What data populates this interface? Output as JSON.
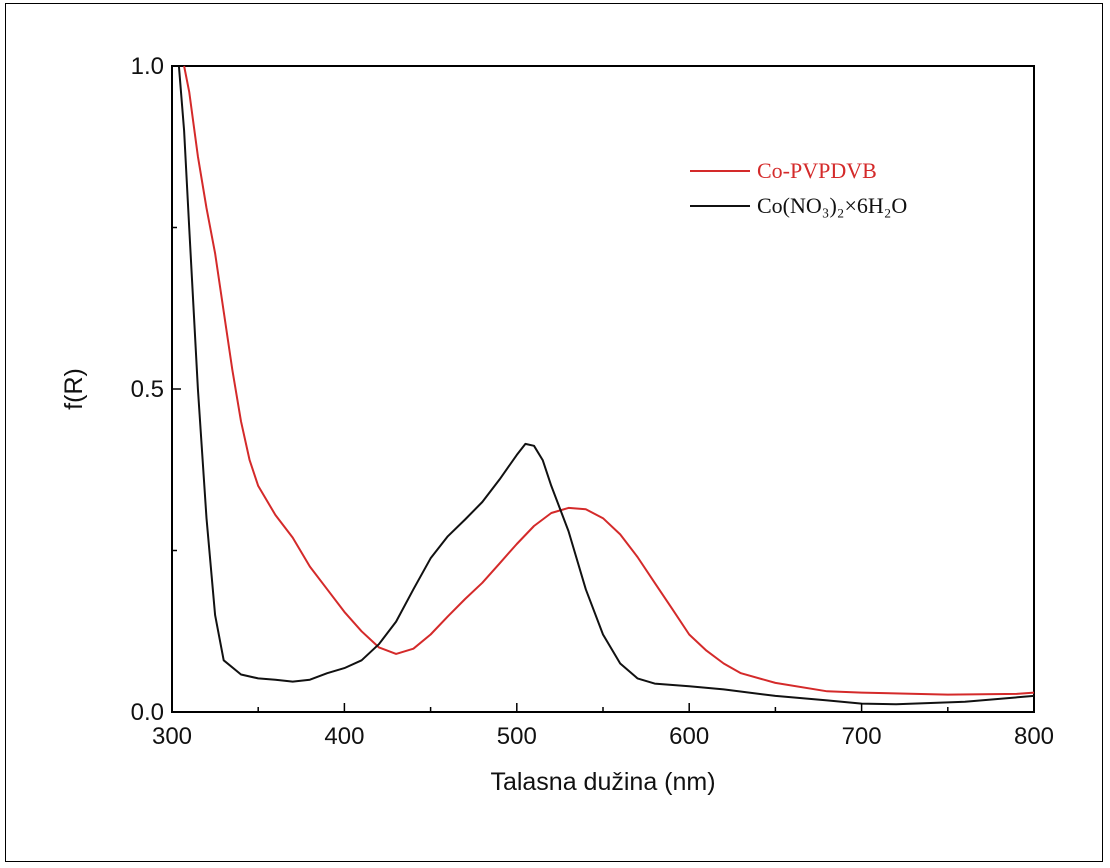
{
  "chart_data": {
    "type": "line",
    "title": "",
    "xlabel": "Talasna dužina (nm)",
    "ylabel": "f(R)",
    "xlim": [
      300,
      800
    ],
    "ylim": [
      0,
      1.0
    ],
    "x_ticks": [
      "300",
      "400",
      "500",
      "600",
      "700",
      "800"
    ],
    "y_ticks": [
      "0.0",
      "0.5",
      "1.0"
    ],
    "grid": false,
    "legend_position": "top-right",
    "series": [
      {
        "name": "Co-PVPDVB",
        "color": "#d42a2a",
        "points": [
          [
            307,
            1.0
          ],
          [
            310,
            0.96
          ],
          [
            315,
            0.86
          ],
          [
            320,
            0.78
          ],
          [
            325,
            0.71
          ],
          [
            330,
            0.62
          ],
          [
            335,
            0.53
          ],
          [
            340,
            0.45
          ],
          [
            345,
            0.39
          ],
          [
            350,
            0.35
          ],
          [
            360,
            0.305
          ],
          [
            370,
            0.27
          ],
          [
            380,
            0.225
          ],
          [
            390,
            0.19
          ],
          [
            400,
            0.155
          ],
          [
            410,
            0.125
          ],
          [
            420,
            0.1
          ],
          [
            430,
            0.09
          ],
          [
            440,
            0.098
          ],
          [
            450,
            0.12
          ],
          [
            460,
            0.148
          ],
          [
            470,
            0.175
          ],
          [
            480,
            0.2
          ],
          [
            490,
            0.23
          ],
          [
            500,
            0.26
          ],
          [
            510,
            0.288
          ],
          [
            520,
            0.308
          ],
          [
            530,
            0.316
          ],
          [
            540,
            0.314
          ],
          [
            550,
            0.3
          ],
          [
            560,
            0.275
          ],
          [
            570,
            0.24
          ],
          [
            580,
            0.2
          ],
          [
            590,
            0.16
          ],
          [
            600,
            0.12
          ],
          [
            610,
            0.095
          ],
          [
            620,
            0.075
          ],
          [
            630,
            0.06
          ],
          [
            650,
            0.045
          ],
          [
            680,
            0.032
          ],
          [
            700,
            0.03
          ],
          [
            750,
            0.027
          ],
          [
            790,
            0.028
          ],
          [
            800,
            0.03
          ]
        ]
      },
      {
        "name": "Co(NO₃)₂×6H₂O",
        "color": "#111111",
        "points": [
          [
            304,
            1.0
          ],
          [
            307,
            0.9
          ],
          [
            310,
            0.75
          ],
          [
            315,
            0.5
          ],
          [
            320,
            0.3
          ],
          [
            325,
            0.15
          ],
          [
            330,
            0.08
          ],
          [
            340,
            0.058
          ],
          [
            350,
            0.052
          ],
          [
            360,
            0.05
          ],
          [
            370,
            0.047
          ],
          [
            380,
            0.05
          ],
          [
            390,
            0.06
          ],
          [
            400,
            0.068
          ],
          [
            410,
            0.08
          ],
          [
            420,
            0.105
          ],
          [
            430,
            0.14
          ],
          [
            440,
            0.19
          ],
          [
            450,
            0.238
          ],
          [
            460,
            0.272
          ],
          [
            470,
            0.298
          ],
          [
            480,
            0.325
          ],
          [
            490,
            0.36
          ],
          [
            500,
            0.398
          ],
          [
            505,
            0.415
          ],
          [
            510,
            0.412
          ],
          [
            515,
            0.39
          ],
          [
            520,
            0.35
          ],
          [
            530,
            0.28
          ],
          [
            540,
            0.19
          ],
          [
            550,
            0.12
          ],
          [
            560,
            0.075
          ],
          [
            570,
            0.052
          ],
          [
            580,
            0.044
          ],
          [
            600,
            0.04
          ],
          [
            620,
            0.035
          ],
          [
            650,
            0.025
          ],
          [
            680,
            0.018
          ],
          [
            700,
            0.013
          ],
          [
            720,
            0.012
          ],
          [
            760,
            0.016
          ],
          [
            800,
            0.025
          ]
        ]
      }
    ]
  }
}
